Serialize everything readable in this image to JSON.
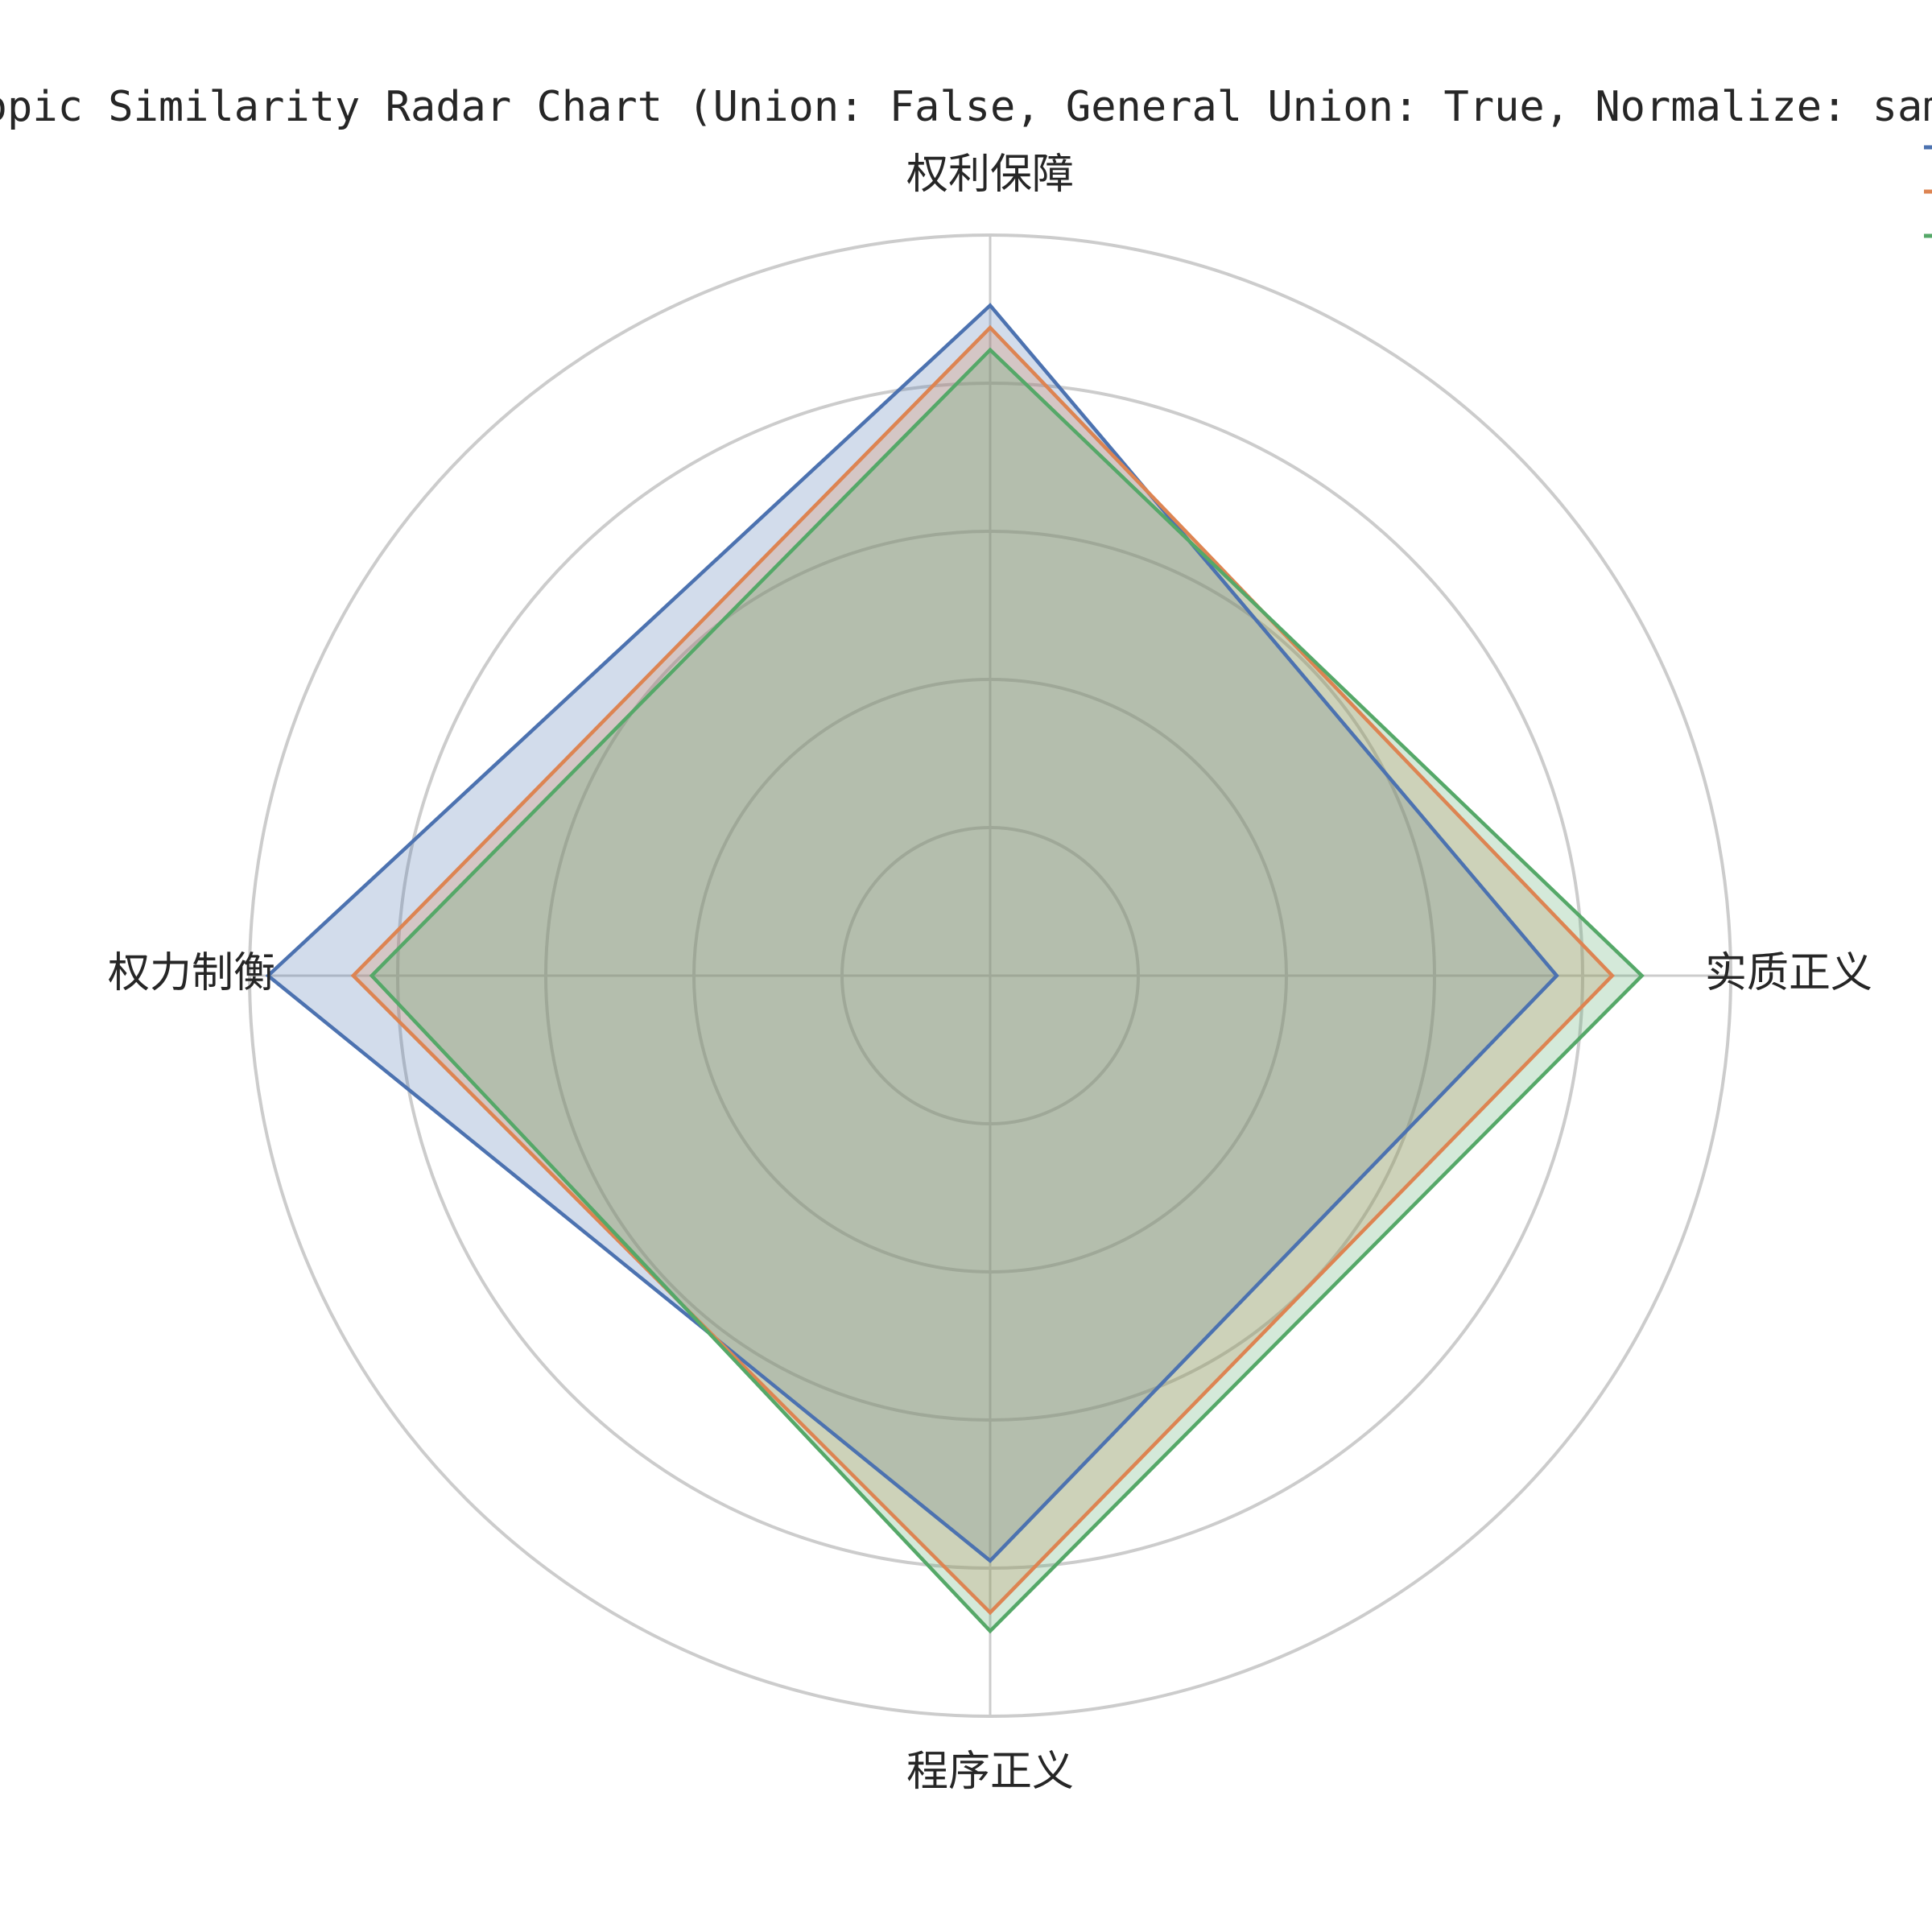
{
  "chart_data": {
    "type": "radar",
    "title": "Topic Similarity Radar Chart (Union: False, General Union: True, Normalize: same_e",
    "axes": [
      "权利保障",
      "实质正义",
      "程序正义",
      "权力制衡"
    ],
    "rlim": [
      0,
      1.0
    ],
    "rgrid": [
      0.2,
      0.4,
      0.6,
      0.8,
      1.0
    ],
    "rticklabels_visible": false,
    "grid": true,
    "legend": "top-right",
    "series": [
      {
        "color": "#4c72b0",
        "fill_opacity": 0.25,
        "values": [
          0.905,
          0.765,
          0.79,
          0.975
        ]
      },
      {
        "color": "#dd8452",
        "fill_opacity": 0.25,
        "values": [
          0.875,
          0.84,
          0.86,
          0.86
        ]
      },
      {
        "color": "#55a868",
        "fill_opacity": 0.25,
        "values": [
          0.845,
          0.88,
          0.885,
          0.835
        ]
      }
    ]
  }
}
